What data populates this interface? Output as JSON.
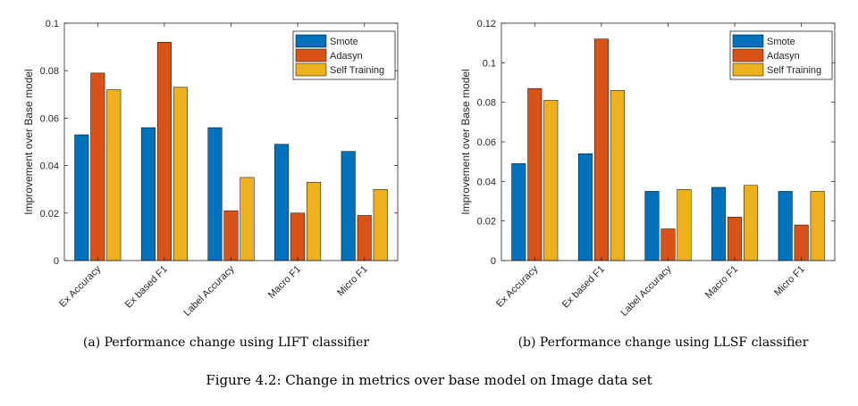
{
  "chart_data": [
    {
      "type": "bar",
      "categories": [
        "Ex Accuracy",
        "Ex based F1",
        "Label Accuracy",
        "Macro F1",
        "Micro F1"
      ],
      "series": [
        {
          "name": "Smote",
          "color": "#0072BD",
          "values": [
            0.053,
            0.056,
            0.056,
            0.049,
            0.046
          ]
        },
        {
          "name": "Adasyn",
          "color": "#D95319",
          "values": [
            0.079,
            0.092,
            0.021,
            0.02,
            0.019
          ]
        },
        {
          "name": "Self Training",
          "color": "#EDB120",
          "values": [
            0.072,
            0.073,
            0.035,
            0.033,
            0.03
          ]
        }
      ],
      "ylabel": "Improvement over Base model",
      "ylim": [
        0,
        0.1
      ],
      "yticks": [
        0,
        0.02,
        0.04,
        0.06,
        0.08,
        0.1
      ],
      "ytick_labels": [
        "0",
        "0.02",
        "0.04",
        "0.06",
        "0.08",
        "0.1"
      ],
      "legend_position": "top-right",
      "grid": false,
      "caption": "(a) Performance change using LIFT classifier"
    },
    {
      "type": "bar",
      "categories": [
        "Ex Accuracy",
        "Ex based F1",
        "Label Accuracy",
        "Macro F1",
        "Micro F1"
      ],
      "series": [
        {
          "name": "Smote",
          "color": "#0072BD",
          "values": [
            0.049,
            0.054,
            0.035,
            0.037,
            0.035
          ]
        },
        {
          "name": "Adasyn",
          "color": "#D95319",
          "values": [
            0.087,
            0.112,
            0.016,
            0.022,
            0.018
          ]
        },
        {
          "name": "Self Training",
          "color": "#EDB120",
          "values": [
            0.081,
            0.086,
            0.036,
            0.038,
            0.035
          ]
        }
      ],
      "ylabel": "Improvement over Base model",
      "ylim": [
        0,
        0.12
      ],
      "yticks": [
        0,
        0.02,
        0.04,
        0.06,
        0.08,
        0.1,
        0.12
      ],
      "ytick_labels": [
        "0",
        "0.02",
        "0.04",
        "0.06",
        "0.08",
        "0.1",
        "0.12"
      ],
      "legend_position": "top-right",
      "grid": false,
      "caption": "(b) Performance change using LLSF classifier"
    }
  ],
  "figure_caption": "Figure 4.2: Change in metrics over base model on Image data set"
}
